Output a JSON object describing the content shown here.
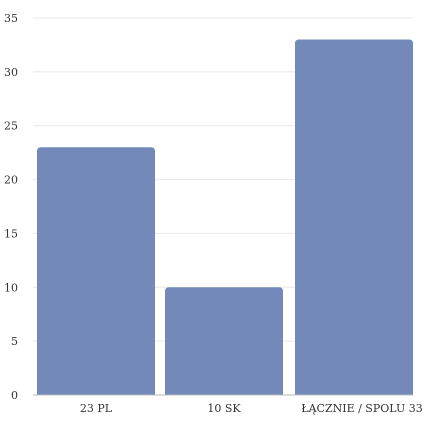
{
  "chart_data": {
    "type": "bar",
    "categories": [
      "23 PL",
      "10 SK",
      "ŁĄCZNIE / SPOLU 33"
    ],
    "values": [
      23,
      10,
      33
    ],
    "ylim": [
      0,
      35
    ],
    "yticks": [
      0,
      5,
      10,
      15,
      20,
      25,
      30,
      35
    ],
    "grid": true,
    "legend": "none",
    "title": "",
    "xlabel": "",
    "ylabel": ""
  },
  "colors": {
    "bar": "#7289b9",
    "grid": "#e8e8e8",
    "axis": "#bbbbbb",
    "text": "#333333"
  }
}
